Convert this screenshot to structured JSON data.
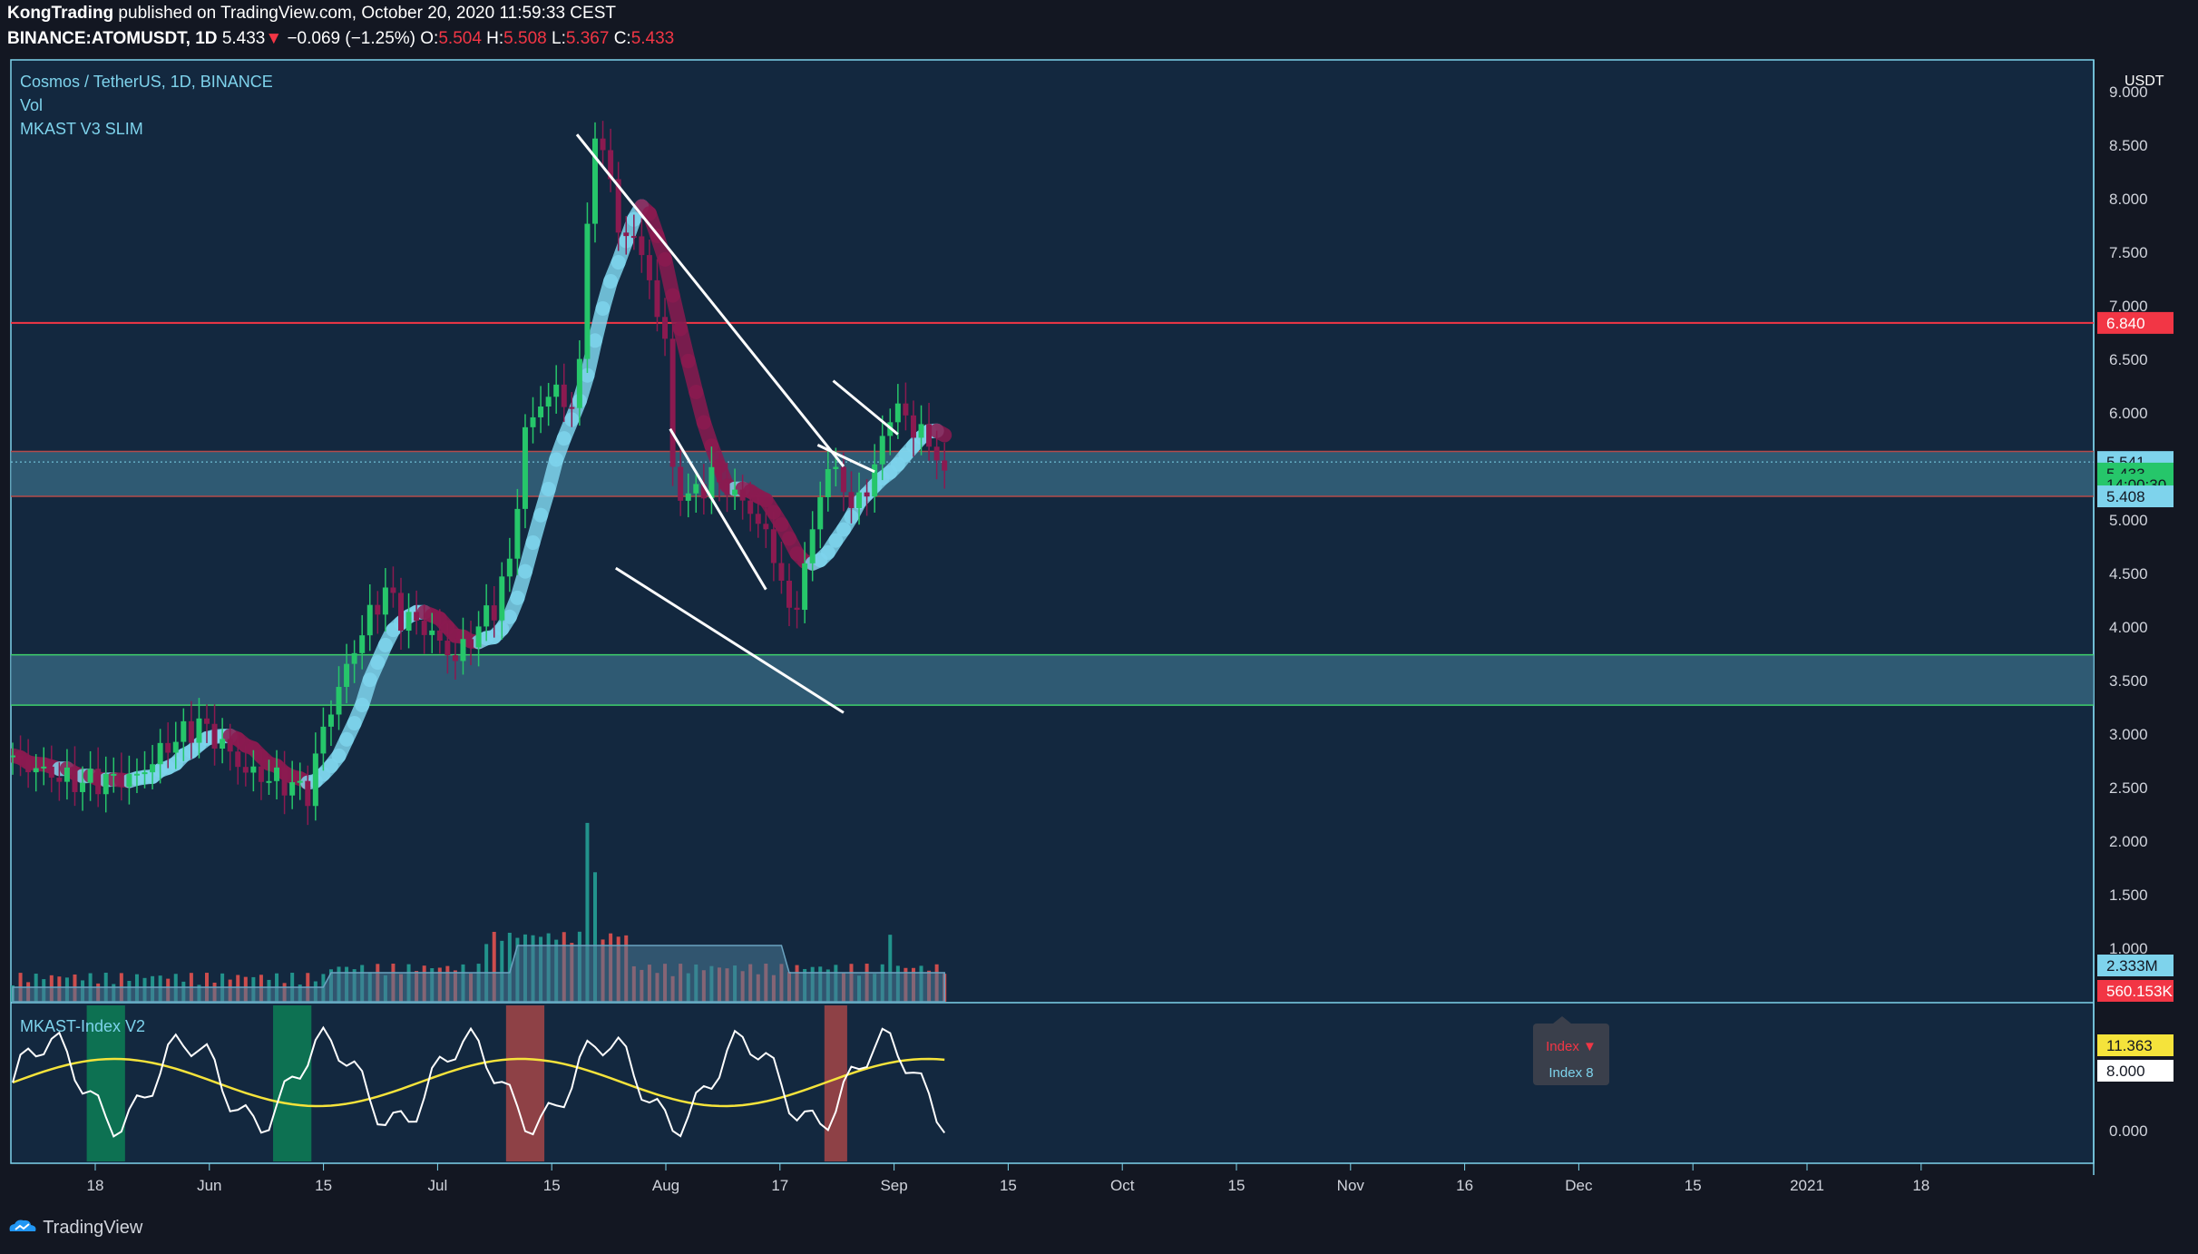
{
  "header": {
    "author": "KongTrading",
    "published_text": " published on TradingView.com, October 20, 2020 11:59:33 CEST",
    "symbol": "BINANCE:ATOMUSDT, 1D",
    "last": "5.433",
    "change_arrow": "▼",
    "change": "−0.069 (−1.25%)",
    "open_label": "O:",
    "open": "5.504",
    "high_label": "H:",
    "high": "5.508",
    "low_label": "L:",
    "low": "5.367",
    "close_label": "C:",
    "close": "5.433"
  },
  "legend": {
    "title": "Cosmos / TetherUS, 1D, BINANCE",
    "vol": "Vol",
    "indicator": "MKAST V3 SLIM",
    "lower_indicator": "MKAST-Index V2"
  },
  "price_axis": {
    "currency": "USDT",
    "ticks": [
      "9.000",
      "8.500",
      "8.000",
      "7.500",
      "7.000",
      "6.500",
      "6.000",
      "5.500",
      "5.000",
      "4.500",
      "4.000",
      "3.500",
      "3.000",
      "2.500",
      "2.000",
      "1.500",
      "1.000"
    ],
    "badges": [
      {
        "text": "6.840",
        "value": 6.84,
        "color": "#f23645"
      },
      {
        "text": "5.541",
        "value": 5.541,
        "color": "#7ed3ec"
      },
      {
        "text": "5.433",
        "value": 5.433,
        "color": "#26c66a"
      },
      {
        "text": "14:00:30",
        "value": 5.33,
        "color": "#26c66a"
      },
      {
        "text": "5.408",
        "value": 5.22,
        "color": "#7ed3ec"
      }
    ],
    "volume_badges": [
      {
        "text": "2.333M",
        "color": "#7ed3ec"
      },
      {
        "text": "560.153K",
        "color": "#f23645"
      }
    ]
  },
  "index_axis": {
    "ticks": [
      "0.000"
    ],
    "badges": [
      {
        "text": "11.363",
        "color": "#f5e33b"
      },
      {
        "text": "8.000",
        "color": "#ffffff"
      }
    ],
    "tooltip": {
      "arrow_label": "Index ▼",
      "sub_label": "Index 8"
    }
  },
  "time_axis": {
    "labels": [
      "18",
      "Jun",
      "15",
      "Jul",
      "15",
      "Aug",
      "17",
      "Sep",
      "15",
      "Oct",
      "15",
      "Nov",
      "16",
      "Dec",
      "15",
      "2021",
      "18"
    ]
  },
  "chart_data": {
    "type": "candlestick",
    "title": "Cosmos / TetherUS, 1D, BINANCE",
    "ylim": [
      1.0,
      9.0
    ],
    "horizontal_levels": [
      {
        "value": 6.84,
        "color": "#f23645"
      }
    ],
    "zones": [
      {
        "from": 5.22,
        "to": 5.64
      },
      {
        "from": 3.27,
        "to": 3.74
      }
    ],
    "key_points": [
      {
        "label": "high",
        "value": 8.9
      },
      {
        "label": "last",
        "value": 5.433
      }
    ],
    "colors": {
      "up": "#26c66a",
      "down": "#8b1a50",
      "ribbon_up": "#7ed3ec",
      "ribbon_down": "#8b1a50",
      "vol_up": "#26a69a",
      "vol_down": "#ef5350",
      "index_line": "#ffffff",
      "index_signal": "#f5e33b"
    }
  },
  "footer": {
    "brand": "TradingView"
  }
}
